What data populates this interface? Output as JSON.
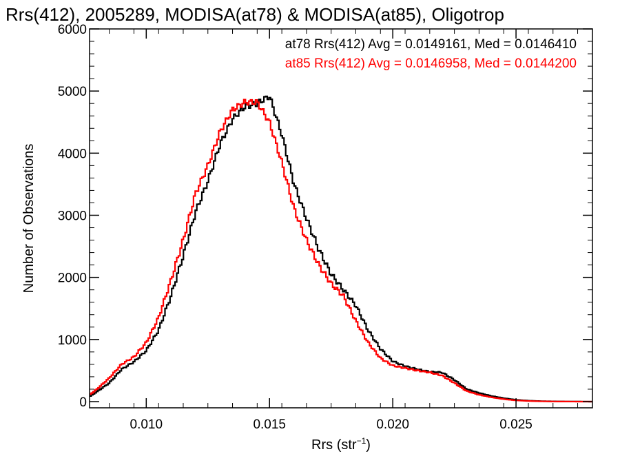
{
  "chart_data": {
    "type": "line",
    "title": "Rrs(412), 2005289, MODISA(at78) & MODISA(at85), Oligotrop",
    "xlabel_main": "Rrs (str",
    "xlabel_sup": "−1",
    "xlabel_close": ")",
    "ylabel": "Number of Observations",
    "xlim": [
      0.0077,
      0.0281
    ],
    "ylim": [
      -100,
      6000
    ],
    "xticks": [
      0.01,
      0.015,
      0.02,
      0.025
    ],
    "xtick_labels": [
      "0.010",
      "0.015",
      "0.020",
      "0.025"
    ],
    "yticks": [
      0,
      1000,
      2000,
      3000,
      4000,
      5000,
      6000
    ],
    "ytick_labels": [
      "0",
      "1000",
      "2000",
      "3000",
      "4000",
      "5000",
      "6000"
    ],
    "grid": false,
    "legend_position": "top-right",
    "legend": [
      "at78 Rrs(412) Avg = 0.0149161, Med = 0.0146410",
      "at85 Rrs(412) Avg = 0.0146958, Med = 0.0144200"
    ],
    "series": [
      {
        "color": "#000000",
        "x": [
          0.0077,
          0.008,
          0.0085,
          0.009,
          0.0095,
          0.01,
          0.0105,
          0.011,
          0.0115,
          0.012,
          0.0125,
          0.013,
          0.0135,
          0.014,
          0.0145,
          0.015,
          0.0155,
          0.016,
          0.0165,
          0.017,
          0.0175,
          0.018,
          0.0185,
          0.019,
          0.0195,
          0.02,
          0.0205,
          0.021,
          0.0215,
          0.022,
          0.0225,
          0.023,
          0.0235,
          0.024,
          0.0245,
          0.025,
          0.0255,
          0.026,
          0.0265,
          0.027,
          0.0275,
          0.0281
        ],
        "y": [
          80,
          160,
          300,
          520,
          640,
          820,
          1150,
          1700,
          2350,
          3050,
          3550,
          4150,
          4550,
          4750,
          4800,
          4920,
          4300,
          3500,
          2950,
          2450,
          2050,
          1800,
          1550,
          1150,
          850,
          650,
          570,
          520,
          480,
          470,
          350,
          200,
          140,
          90,
          55,
          28,
          15,
          8,
          4,
          2,
          1,
          0
        ]
      },
      {
        "color": "#ff0000",
        "x": [
          0.0077,
          0.008,
          0.0085,
          0.009,
          0.0095,
          0.01,
          0.0105,
          0.011,
          0.0115,
          0.012,
          0.0125,
          0.013,
          0.0135,
          0.014,
          0.0145,
          0.015,
          0.0155,
          0.016,
          0.0165,
          0.017,
          0.0175,
          0.018,
          0.0185,
          0.019,
          0.0195,
          0.02,
          0.0205,
          0.021,
          0.0215,
          0.022,
          0.0225,
          0.023,
          0.0235,
          0.024,
          0.0245,
          0.025,
          0.0255,
          0.026,
          0.0265,
          0.027,
          0.0275,
          0.0281
        ],
        "y": [
          110,
          200,
          380,
          600,
          720,
          950,
          1350,
          1950,
          2600,
          3350,
          3800,
          4350,
          4700,
          4820,
          4820,
          4500,
          3850,
          3100,
          2600,
          2200,
          1900,
          1700,
          1300,
          950,
          700,
          580,
          540,
          500,
          470,
          420,
          300,
          170,
          110,
          70,
          40,
          20,
          10,
          5,
          2,
          1,
          0,
          0
        ]
      }
    ]
  }
}
